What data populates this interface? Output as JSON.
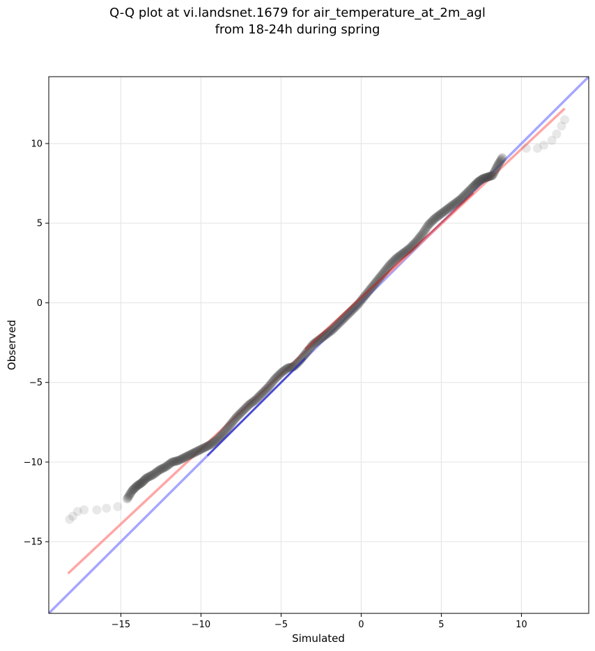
{
  "title_lines": [
    "Q-Q plot at vi.landsnet.1679 for air_temperature_at_2m_agl",
    "from 18-24h during spring"
  ],
  "chart_data": {
    "type": "scatter",
    "xlabel": "Simulated",
    "ylabel": "Observed",
    "xlim": [
      -19.5,
      14.2
    ],
    "ylim": [
      -19.5,
      14.2
    ],
    "xticks": [
      -15,
      -10,
      -5,
      0,
      5,
      10
    ],
    "yticks": [
      -15,
      -10,
      -5,
      0,
      5,
      10
    ],
    "xtick_labels": [
      "−15",
      "−10",
      "−5",
      "0",
      "5",
      "10"
    ],
    "ytick_labels": [
      "−15",
      "−10",
      "−5",
      "0",
      "5",
      "10"
    ],
    "grid": true,
    "colors": {
      "points": "#444444",
      "identity_line": "#8080ff",
      "fit_line": "#ff8080",
      "inner_blue": "#3030c0",
      "inner_red": "#c02020"
    },
    "identity_line": {
      "x": [
        -19.5,
        14.2
      ],
      "y": [
        -19.5,
        14.2
      ]
    },
    "fit_line": {
      "x": [
        -18.3,
        12.7
      ],
      "y": [
        -17.0,
        12.2
      ]
    },
    "points": {
      "x": [
        -18.2,
        -18.0,
        -17.7,
        -17.3,
        -16.5,
        -15.9,
        -15.2,
        -14.6,
        -14.3,
        -14.0,
        -13.7,
        -13.4,
        -13.0,
        -12.6,
        -12.2,
        -11.8,
        -11.4,
        -11.0,
        -10.6,
        -10.2,
        -9.8,
        -9.4,
        -9.0,
        -8.6,
        -8.2,
        -7.8,
        -7.4,
        -7.0,
        -6.6,
        -6.2,
        -5.8,
        -5.4,
        -5.0,
        -4.6,
        -4.2,
        -3.8,
        -3.4,
        -3.0,
        -2.6,
        -2.2,
        -1.8,
        -1.4,
        -1.0,
        -0.6,
        -0.2,
        0.2,
        0.6,
        1.0,
        1.4,
        1.8,
        2.2,
        2.6,
        3.0,
        3.4,
        3.8,
        4.2,
        4.6,
        5.0,
        5.4,
        5.8,
        6.2,
        6.6,
        7.0,
        7.3,
        7.6,
        7.9,
        8.2,
        8.5,
        8.8,
        10.3,
        11.0,
        11.4,
        11.9,
        12.2,
        12.5,
        12.7
      ],
      "y": [
        -13.6,
        -13.4,
        -13.1,
        -13.0,
        -13.0,
        -12.9,
        -12.8,
        -12.3,
        -11.8,
        -11.5,
        -11.3,
        -11.0,
        -10.8,
        -10.5,
        -10.3,
        -10.0,
        -9.9,
        -9.7,
        -9.5,
        -9.3,
        -9.1,
        -8.9,
        -8.6,
        -8.2,
        -7.7,
        -7.2,
        -6.8,
        -6.4,
        -6.1,
        -5.7,
        -5.3,
        -4.8,
        -4.4,
        -4.1,
        -4.0,
        -3.6,
        -3.1,
        -2.6,
        -2.3,
        -2.0,
        -1.7,
        -1.3,
        -0.9,
        -0.5,
        -0.1,
        0.4,
        0.9,
        1.4,
        1.9,
        2.4,
        2.8,
        3.1,
        3.4,
        3.8,
        4.3,
        4.9,
        5.3,
        5.6,
        5.9,
        6.2,
        6.5,
        6.9,
        7.3,
        7.6,
        7.8,
        7.9,
        8.0,
        8.6,
        9.1,
        9.7,
        9.7,
        9.9,
        10.2,
        10.6,
        11.1,
        11.5
      ]
    }
  }
}
